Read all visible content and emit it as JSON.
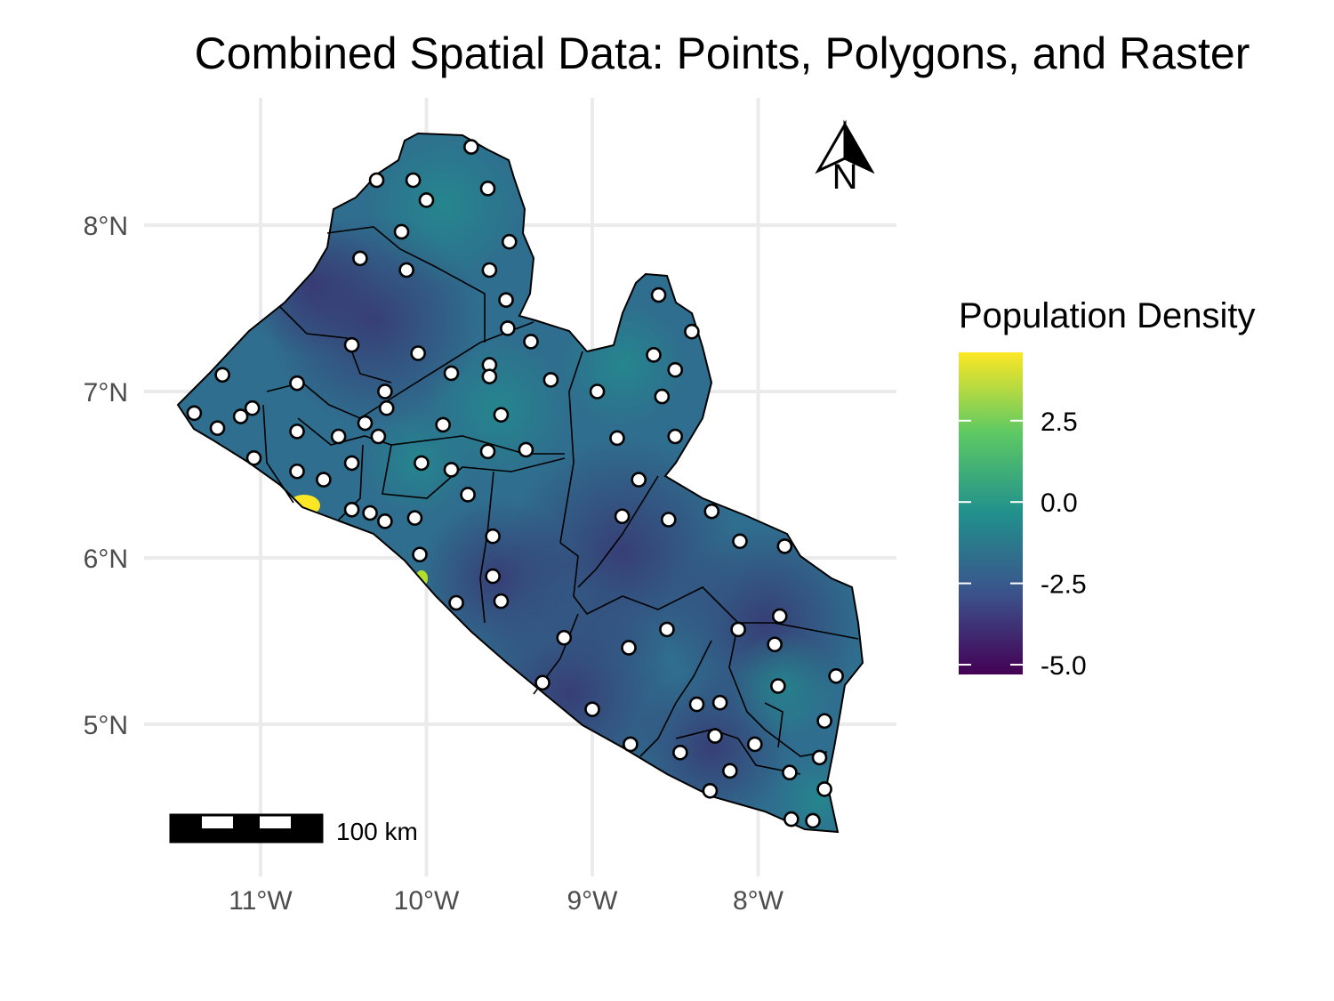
{
  "title": "Combined Spatial Data: Points, Polygons, and Raster",
  "axes": {
    "x_ticks": [
      {
        "value": -11,
        "label": "11°W"
      },
      {
        "value": -10,
        "label": "10°W"
      },
      {
        "value": -9,
        "label": "9°W"
      },
      {
        "value": -8,
        "label": "8°W"
      }
    ],
    "y_ticks": [
      {
        "value": 8,
        "label": "8°N"
      },
      {
        "value": 7,
        "label": "7°N"
      },
      {
        "value": 6,
        "label": "6°N"
      },
      {
        "value": 5,
        "label": "5°N"
      }
    ]
  },
  "legend": {
    "title": "Population Density",
    "range": [
      -5.3,
      4.6
    ],
    "ticks": [
      {
        "value": 2.5,
        "label": "2.5"
      },
      {
        "value": 0.0,
        "label": "0.0"
      },
      {
        "value": -2.5,
        "label": "-2.5"
      },
      {
        "value": -5.0,
        "label": "-5.0"
      }
    ],
    "palette": [
      "#440154",
      "#3b528b",
      "#21908d",
      "#5dc963",
      "#fde725"
    ]
  },
  "scale_bar": {
    "label": "100 km"
  },
  "north_arrow": {
    "label": "N"
  },
  "colors": {
    "grid": "#ebebeb",
    "point_fill": "#ffffff",
    "point_stroke": "#000000",
    "background_raster": "#2f6e8e"
  },
  "chart_data": {
    "type": "scatter",
    "layers": [
      "raster",
      "polygons",
      "points"
    ],
    "xlim": [
      -11.5,
      -7.3
    ],
    "ylim": [
      4.3,
      8.6
    ],
    "points": [
      [
        -9.73,
        8.47
      ],
      [
        -10.3,
        8.27
      ],
      [
        -10.08,
        8.27
      ],
      [
        -10.0,
        8.15
      ],
      [
        -9.63,
        8.22
      ],
      [
        -10.15,
        7.96
      ],
      [
        -9.5,
        7.9
      ],
      [
        -10.4,
        7.8
      ],
      [
        -10.12,
        7.73
      ],
      [
        -9.62,
        7.73
      ],
      [
        -9.52,
        7.55
      ],
      [
        -9.51,
        7.38
      ],
      [
        -10.45,
        7.28
      ],
      [
        -10.05,
        7.23
      ],
      [
        -9.37,
        7.3
      ],
      [
        -9.62,
        7.16
      ],
      [
        -9.62,
        7.09
      ],
      [
        -9.85,
        7.11
      ],
      [
        -9.25,
        7.07
      ],
      [
        -11.23,
        7.1
      ],
      [
        -10.78,
        7.05
      ],
      [
        -10.25,
        7.0
      ],
      [
        -11.4,
        6.87
      ],
      [
        -11.05,
        6.9
      ],
      [
        -11.12,
        6.85
      ],
      [
        -10.24,
        6.9
      ],
      [
        -10.37,
        6.81
      ],
      [
        -9.55,
        6.86
      ],
      [
        -9.9,
        6.8
      ],
      [
        -11.26,
        6.78
      ],
      [
        -10.78,
        6.76
      ],
      [
        -10.29,
        6.73
      ],
      [
        -10.53,
        6.73
      ],
      [
        -9.4,
        6.65
      ],
      [
        -9.63,
        6.64
      ],
      [
        -11.04,
        6.6
      ],
      [
        -10.45,
        6.57
      ],
      [
        -10.03,
        6.57
      ],
      [
        -9.85,
        6.53
      ],
      [
        -10.78,
        6.52
      ],
      [
        -10.62,
        6.47
      ],
      [
        -9.75,
        6.38
      ],
      [
        -10.45,
        6.29
      ],
      [
        -10.34,
        6.27
      ],
      [
        -10.25,
        6.22
      ],
      [
        -10.07,
        6.24
      ],
      [
        -9.6,
        6.13
      ],
      [
        -10.04,
        6.02
      ],
      [
        -9.6,
        5.89
      ],
      [
        -9.55,
        5.74
      ],
      [
        -9.82,
        5.73
      ],
      [
        -9.17,
        5.52
      ],
      [
        -9.3,
        5.25
      ],
      [
        -9.0,
        5.09
      ],
      [
        -8.6,
        7.58
      ],
      [
        -8.4,
        7.36
      ],
      [
        -8.63,
        7.22
      ],
      [
        -8.5,
        7.13
      ],
      [
        -8.58,
        6.97
      ],
      [
        -8.97,
        7.0
      ],
      [
        -8.5,
        6.73
      ],
      [
        -8.85,
        6.72
      ],
      [
        -8.72,
        6.47
      ],
      [
        -8.82,
        6.25
      ],
      [
        -8.54,
        6.23
      ],
      [
        -8.28,
        6.28
      ],
      [
        -8.11,
        6.1
      ],
      [
        -7.84,
        6.07
      ],
      [
        -7.87,
        5.65
      ],
      [
        -8.12,
        5.57
      ],
      [
        -8.55,
        5.57
      ],
      [
        -8.78,
        5.46
      ],
      [
        -7.9,
        5.48
      ],
      [
        -7.53,
        5.29
      ],
      [
        -7.88,
        5.23
      ],
      [
        -8.37,
        5.12
      ],
      [
        -8.23,
        5.13
      ],
      [
        -8.26,
        4.93
      ],
      [
        -8.02,
        4.88
      ],
      [
        -8.77,
        4.88
      ],
      [
        -8.47,
        4.83
      ],
      [
        -7.6,
        5.02
      ],
      [
        -7.63,
        4.8
      ],
      [
        -8.17,
        4.72
      ],
      [
        -7.81,
        4.71
      ],
      [
        -7.6,
        4.61
      ],
      [
        -8.29,
        4.6
      ],
      [
        -7.8,
        4.43
      ],
      [
        -7.67,
        4.42
      ]
    ]
  }
}
